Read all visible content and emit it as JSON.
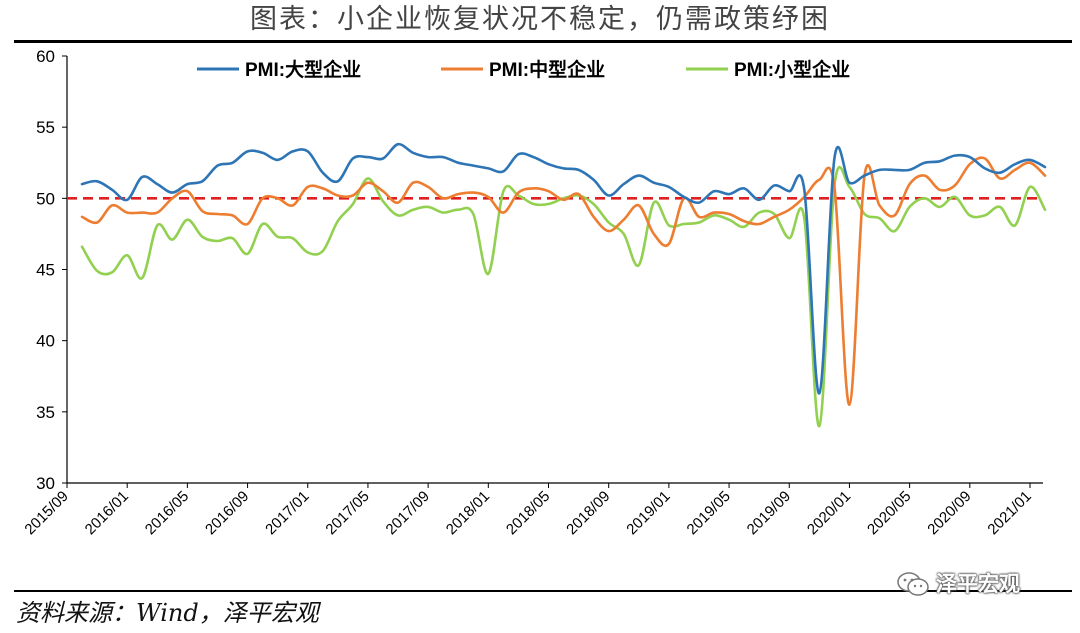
{
  "header": {
    "title": "图表：小企业恢复状况不稳定，仍需政策纾困"
  },
  "footer": {
    "source": "资料来源：Wind，泽平宏观",
    "watermark": "泽平宏观"
  },
  "chart_data": {
    "type": "line",
    "title": "图表：小企业恢复状况不稳定，仍需政策纾困",
    "xlabel": "",
    "ylabel": "",
    "ylim": [
      30,
      60
    ],
    "yticks": [
      30,
      35,
      40,
      45,
      50,
      55,
      60
    ],
    "x_tick_labels": [
      "2015/09",
      "2016/01",
      "2016/05",
      "2016/09",
      "2017/01",
      "2017/05",
      "2017/09",
      "2018/01",
      "2018/05",
      "2018/09",
      "2019/01",
      "2019/05",
      "2019/09",
      "2020/01",
      "2020/05",
      "2020/09",
      "2021/01"
    ],
    "x": [
      "2015/10",
      "2015/11",
      "2015/12",
      "2016/01",
      "2016/02",
      "2016/03",
      "2016/04",
      "2016/05",
      "2016/06",
      "2016/07",
      "2016/08",
      "2016/09",
      "2016/10",
      "2016/11",
      "2016/12",
      "2017/01",
      "2017/02",
      "2017/03",
      "2017/04",
      "2017/05",
      "2017/06",
      "2017/07",
      "2017/08",
      "2017/09",
      "2017/10",
      "2017/11",
      "2017/12",
      "2018/01",
      "2018/02",
      "2018/03",
      "2018/04",
      "2018/05",
      "2018/06",
      "2018/07",
      "2018/08",
      "2018/09",
      "2018/10",
      "2018/11",
      "2018/12",
      "2019/01",
      "2019/02",
      "2019/03",
      "2019/04",
      "2019/05",
      "2019/06",
      "2019/07",
      "2019/08",
      "2019/09",
      "2019/10",
      "2019/11",
      "2019/12",
      "2020/01",
      "2020/02",
      "2020/03",
      "2020/04",
      "2020/05",
      "2020/06",
      "2020/07",
      "2020/08",
      "2020/09",
      "2020/10",
      "2020/11",
      "2020/12",
      "2021/01",
      "2021/02"
    ],
    "series": [
      {
        "name": "PMI:大型企业",
        "color": "#2E75B6",
        "values": [
          51.0,
          51.2,
          50.6,
          49.9,
          51.5,
          51.0,
          50.4,
          51.0,
          51.2,
          52.3,
          52.5,
          53.3,
          53.2,
          52.7,
          53.3,
          53.3,
          51.8,
          51.2,
          52.8,
          52.9,
          52.8,
          53.8,
          53.2,
          52.9,
          52.9,
          52.5,
          52.3,
          52.1,
          51.9,
          53.1,
          52.9,
          52.4,
          52.1,
          52.0,
          51.3,
          50.2,
          51.0,
          51.6,
          51.1,
          50.8,
          50.1,
          49.7,
          50.5,
          50.3,
          50.7,
          49.9,
          50.9,
          50.5,
          50.6,
          36.3,
          52.8,
          51.1,
          51.6,
          52.0,
          52.0,
          52.0,
          52.5,
          52.6,
          53.0,
          52.9,
          52.1,
          51.8,
          52.4,
          52.7,
          52.2
        ]
      },
      {
        "name": "PMI:中型企业",
        "color": "#ED7D31",
        "values": [
          48.7,
          48.3,
          49.5,
          49.0,
          49.0,
          49.0,
          50.0,
          50.5,
          49.1,
          48.9,
          48.8,
          48.2,
          50.0,
          50.0,
          49.5,
          50.8,
          50.7,
          50.2,
          50.2,
          51.1,
          50.5,
          49.7,
          51.1,
          50.8,
          50.0,
          50.3,
          50.4,
          50.1,
          49.0,
          50.4,
          50.7,
          50.5,
          49.9,
          50.3,
          48.7,
          47.7,
          48.5,
          49.5,
          47.5,
          46.8,
          50.0,
          48.7,
          49.0,
          48.9,
          48.4,
          48.2,
          48.7,
          49.2,
          50.1,
          51.3,
          50.8,
          35.5,
          51.6,
          49.5,
          48.8,
          51.0,
          51.6,
          50.6,
          50.9,
          52.4,
          52.8,
          51.4,
          52.0,
          52.5,
          51.6
        ]
      },
      {
        "name": "PMI:小型企业",
        "color": "#92D050",
        "values": [
          46.6,
          44.9,
          44.8,
          46.0,
          44.4,
          48.1,
          47.1,
          48.5,
          47.3,
          47.0,
          47.2,
          46.1,
          48.2,
          47.3,
          47.2,
          46.2,
          46.3,
          48.4,
          49.6,
          51.4,
          49.8,
          48.8,
          49.2,
          49.4,
          49.0,
          49.2,
          48.9,
          44.7,
          50.5,
          50.2,
          49.6,
          49.6,
          50.0,
          50.2,
          49.6,
          48.3,
          47.5,
          45.3,
          49.7,
          48.1,
          48.2,
          48.3,
          48.8,
          48.5,
          48.0,
          49.0,
          48.9,
          47.2,
          48.6,
          34.0,
          50.9,
          50.8,
          48.9,
          48.6,
          47.7,
          49.4,
          50.0,
          49.4,
          50.1,
          48.8,
          48.8,
          49.4,
          48.1,
          50.8,
          49.2
        ]
      }
    ],
    "reference_line": {
      "value": 50,
      "color": "#E02020",
      "style": "dashed"
    },
    "legend": {
      "position": "top"
    },
    "grid": false
  }
}
